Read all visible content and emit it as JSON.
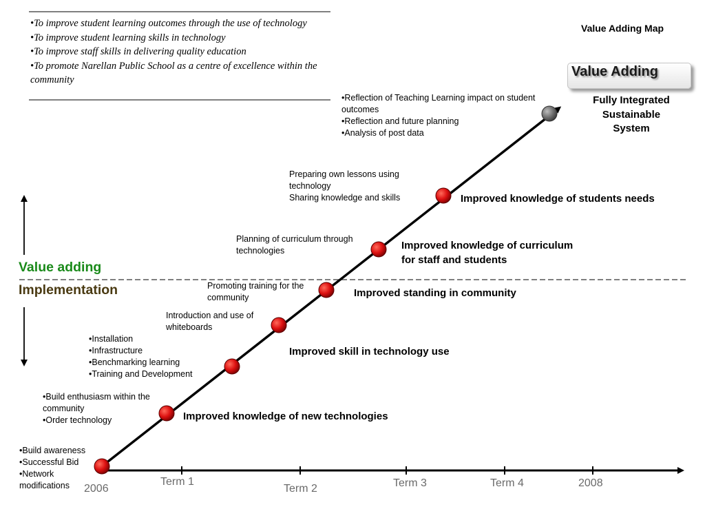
{
  "goals": [
    "•To improve student learning outcomes through the use of technology",
    "•To improve student learning skills in technology",
    "•To improve staff skills in delivering quality education",
    "•To promote Narellan Public School as a centre of excellence within the community"
  ],
  "title": "Value Adding Map",
  "value_adding_box": "Value Adding",
  "final_label": [
    "Fully Integrated",
    "Sustainable",
    "System"
  ],
  "phases": {
    "upper": "Value adding",
    "lower": "Implementation"
  },
  "notes": {
    "n1": [
      "•Build awareness",
      "•Successful Bid",
      "•Network",
      "modifications"
    ],
    "n2": [
      "•Build enthusiasm within the",
      "community",
      "•Order technology"
    ],
    "n3": [
      "•Installation",
      "•Infrastructure",
      "•Benchmarking learning",
      "•Training and Development"
    ],
    "n4": [
      "Introduction and use of",
      "whiteboards"
    ],
    "n5": [
      "Promoting training for the",
      "community"
    ],
    "n6": [
      "Planning of curriculum through",
      "technologies"
    ],
    "n7": [
      "Preparing own lessons using",
      "technology",
      "Sharing knowledge and skills"
    ],
    "n8": [
      "•Reflection of Teaching Learning impact on student",
      "outcomes",
      "•Reflection and future planning",
      "•Analysis of post data"
    ]
  },
  "outcomes": {
    "o1": [
      "Improved knowledge of new technologies"
    ],
    "o2": [
      "Improved skill in technology use"
    ],
    "o3": [
      "Improved standing in community"
    ],
    "o4": [
      "Improved knowledge of curriculum",
      "for staff and students"
    ],
    "o5": [
      "Improved knowledge of students needs"
    ]
  },
  "timeline": {
    "start": "2006",
    "term1": "Term 1",
    "term2": "Term 2",
    "term3": "Term 3",
    "term4": "Term 4",
    "end": "2008"
  },
  "colors": {
    "milestone": "#cc0000",
    "final_milestone": "#666666",
    "value_adding_text": "#1a8a1a",
    "implementation_text": "#4a3a12",
    "axis_label_text": "#6a6a6a"
  }
}
